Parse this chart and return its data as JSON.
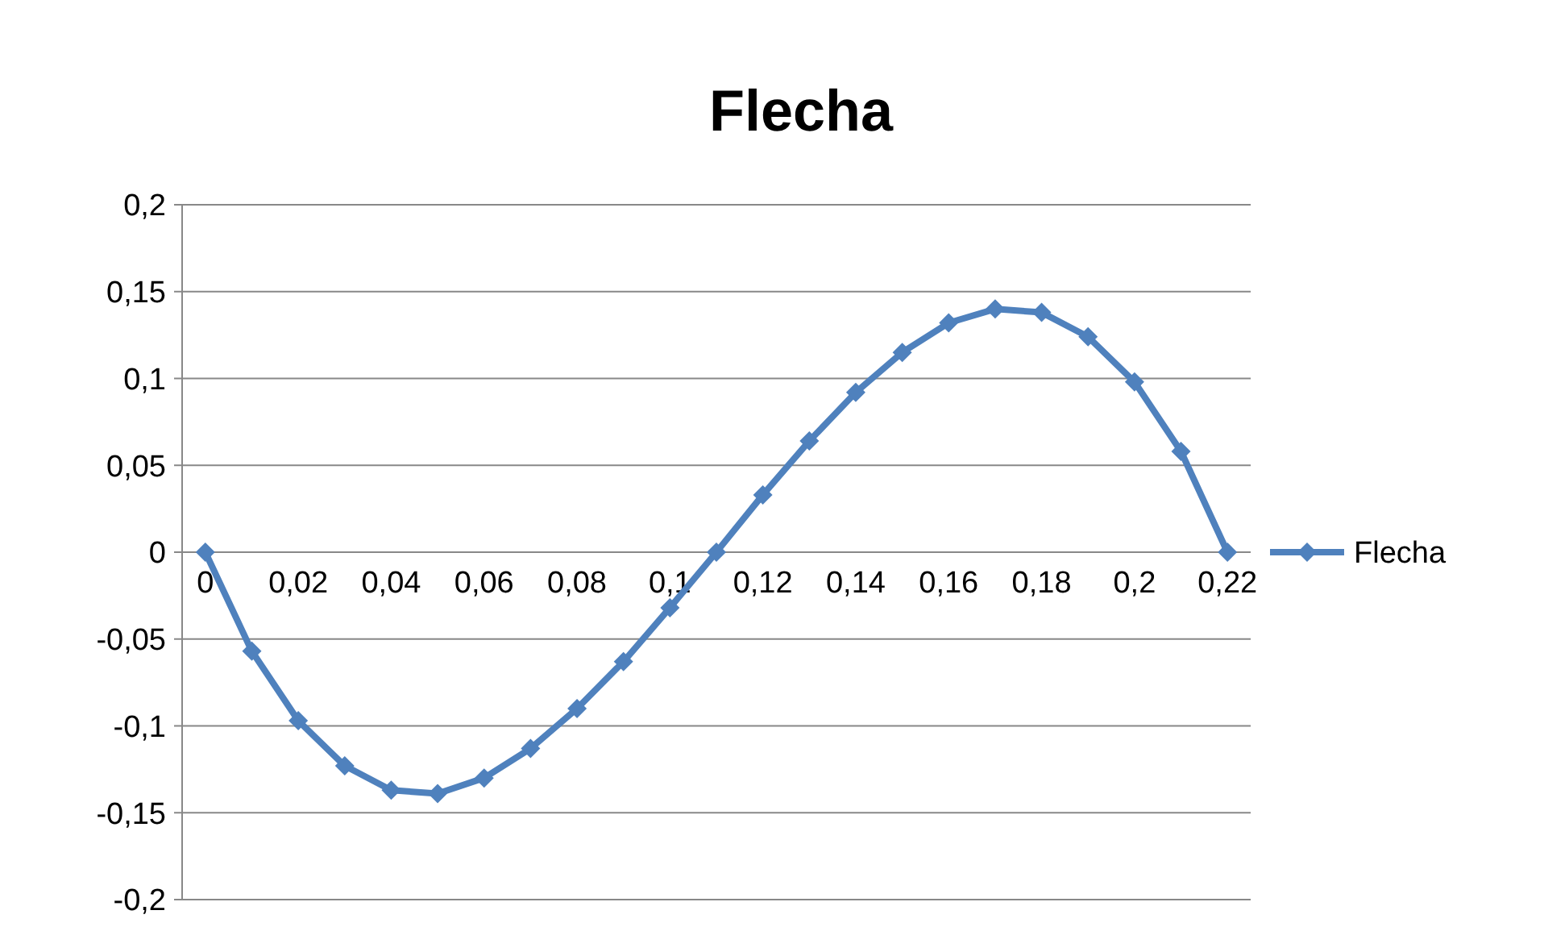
{
  "chart_data": {
    "type": "line",
    "title": "Flecha",
    "categories": [
      "0",
      null,
      "0,02",
      null,
      "0,04",
      null,
      "0,06",
      null,
      "0,08",
      null,
      "0,1",
      null,
      "0,12",
      null,
      "0,14",
      null,
      "0,16",
      null,
      "0,18",
      null,
      "0,2",
      null,
      "0,22"
    ],
    "series": [
      {
        "name": "Flecha",
        "color": "#4f81bd",
        "values": [
          0,
          -0.057,
          -0.097,
          -0.123,
          -0.137,
          -0.139,
          -0.13,
          -0.113,
          -0.09,
          -0.063,
          -0.032,
          0,
          0.033,
          0.064,
          0.092,
          0.115,
          0.132,
          0.14,
          0.138,
          0.124,
          0.098,
          0.058,
          0
        ]
      }
    ],
    "ylim": [
      -0.2,
      0.2
    ],
    "yticks": [
      {
        "value": -0.2,
        "label": "-0,2"
      },
      {
        "value": -0.15,
        "label": "-0,15"
      },
      {
        "value": -0.1,
        "label": "-0,1"
      },
      {
        "value": -0.05,
        "label": "-0,05"
      },
      0,
      {
        "value": 0.05,
        "label": "0,05"
      },
      {
        "value": 0.1,
        "label": "0,1"
      },
      {
        "value": 0.15,
        "label": "0,15"
      },
      {
        "value": 0.2,
        "label": "0,2"
      }
    ],
    "grid": "y",
    "legend": "right",
    "marker": "diamond",
    "line_style": "solid"
  }
}
